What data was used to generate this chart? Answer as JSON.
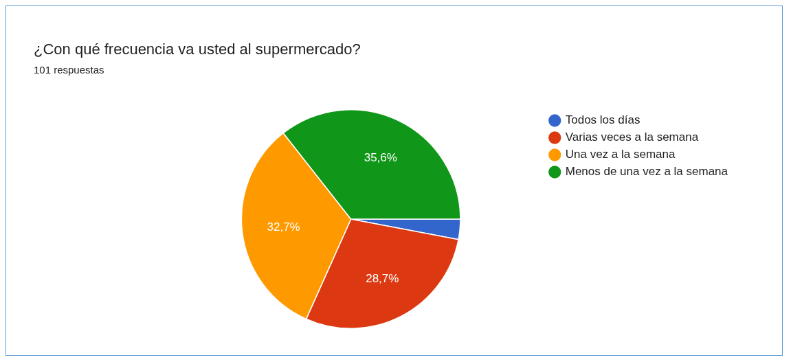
{
  "chart_data": {
    "type": "pie",
    "title": "¿Con qué frecuencia va usted al supermercado?",
    "subtitle": "101 respuestas",
    "categories": [
      "Todos los días",
      "Varias veces a la semana",
      "Una vez a la semana",
      "Menos de una vez a la semana"
    ],
    "values": [
      3.0,
      28.7,
      32.7,
      35.6
    ],
    "colors": [
      "#3366cc",
      "#dc3912",
      "#ff9900",
      "#109618"
    ],
    "value_labels": [
      null,
      "28,7%",
      "32,7%",
      "35,6%"
    ],
    "legend": "top right"
  }
}
